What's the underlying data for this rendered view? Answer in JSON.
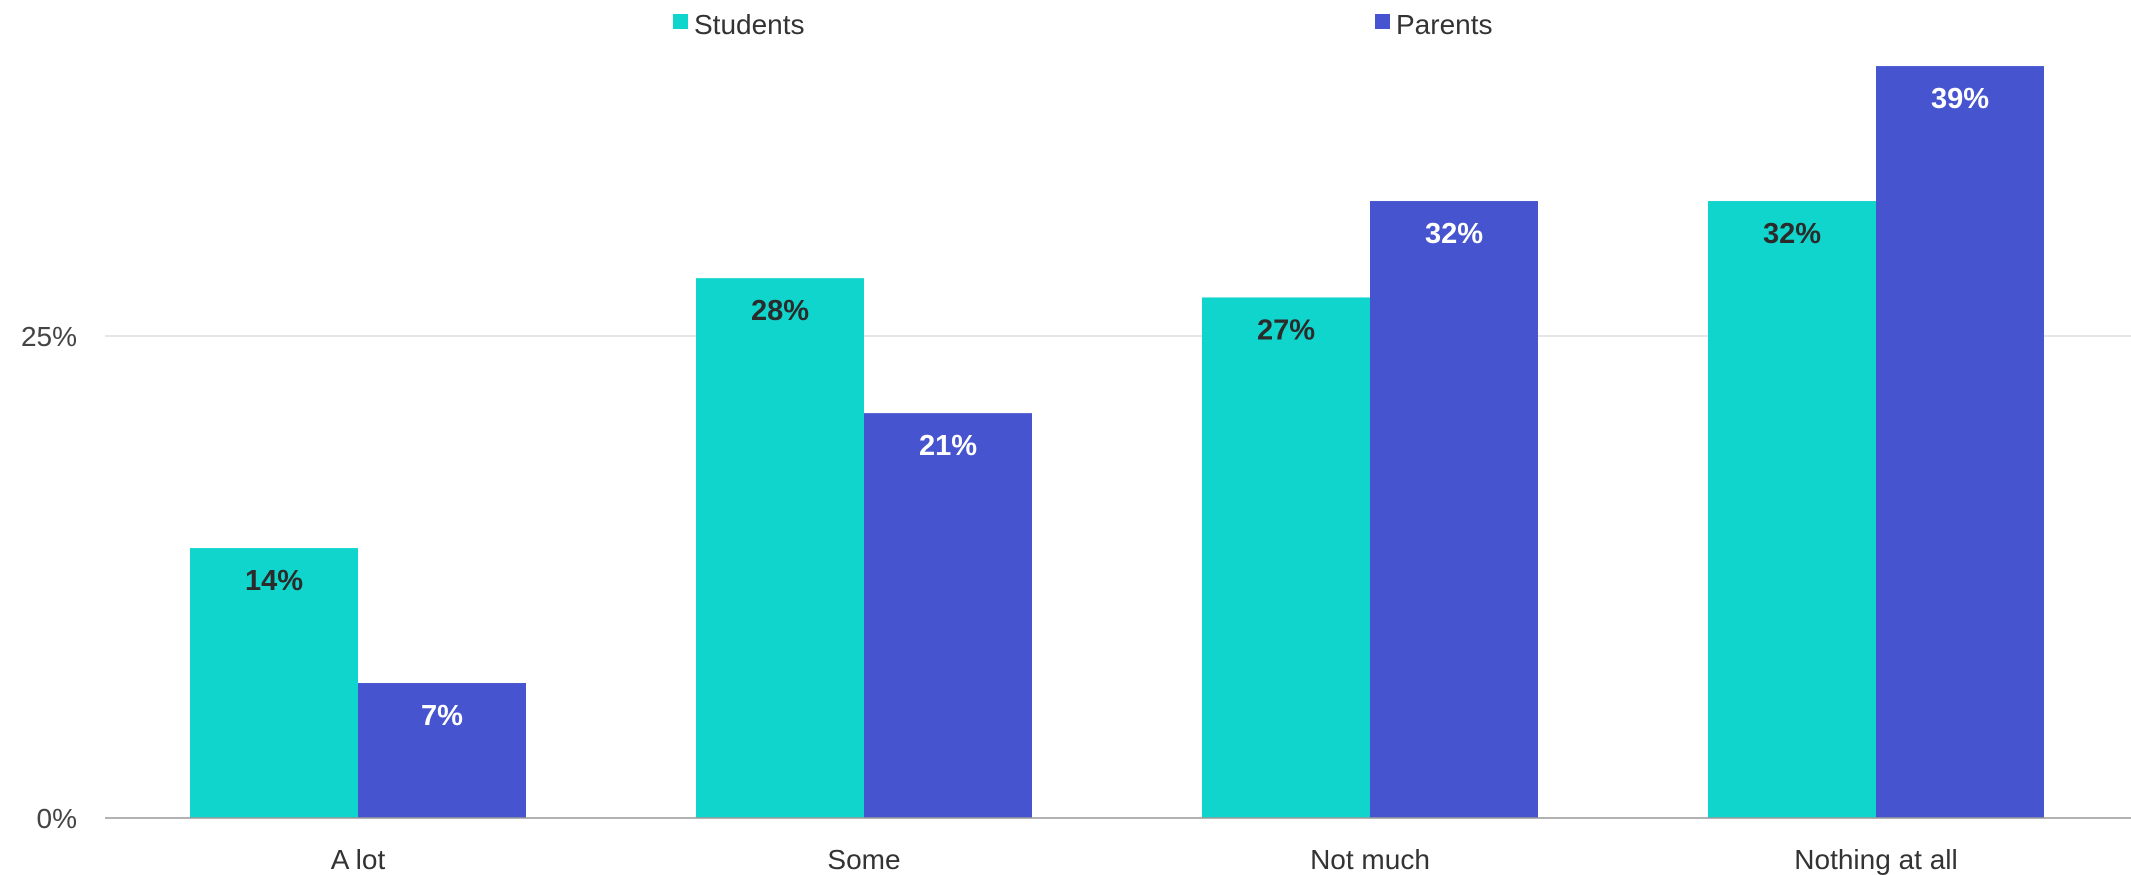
{
  "chart_data": {
    "type": "bar",
    "categories": [
      "A lot",
      "Some",
      "Not much",
      "Nothing at all"
    ],
    "series": [
      {
        "name": "Students",
        "values": [
          14,
          28,
          27,
          32
        ],
        "labels": [
          "14%",
          "28%",
          "27%",
          "32%"
        ],
        "color": "#10d5cc",
        "label_color": "#2b2b2b"
      },
      {
        "name": "Parents",
        "values": [
          7,
          21,
          32,
          39
        ],
        "labels": [
          "7%",
          "21%",
          "32%",
          "39%"
        ],
        "color": "#4654cf",
        "label_color": "#ffffff"
      }
    ],
    "yticks": [
      {
        "value": 0,
        "label": "0%"
      },
      {
        "value": 25,
        "label": "25%"
      }
    ],
    "ylim": [
      0,
      40
    ],
    "grid": true,
    "legend_position": "top-center",
    "title": "",
    "xlabel": "",
    "ylabel": ""
  }
}
